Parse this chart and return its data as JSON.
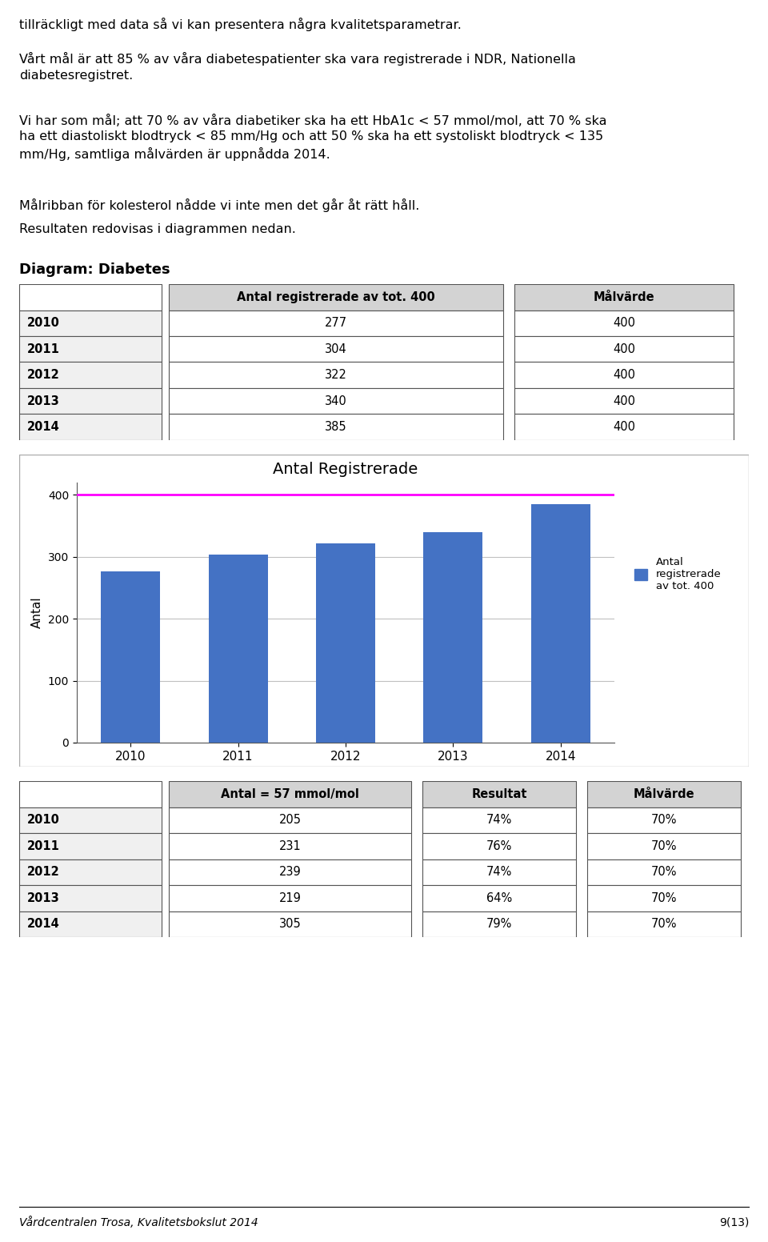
{
  "text_paragraphs": [
    "tillräckligt med data så vi kan presentera några kvalitetsparametrar.",
    "Vårt mål är att 85 % av våra diabetespatienter ska vara registrerade i NDR, Nationella\ndiabetesregistret.",
    "Vi har som mål; att 70 % av våra diabetiker ska ha ett HbA1c < 57 mmol/mol, att 70 % ska\nha ett diastoliskt blodtryck < 85 mm/Hg och att 50 % ska ha ett systoliskt blodtryck < 135\nmm/Hg, samtliga målvärden är uppnådda 2014.",
    "Målribban för kolesterol nådde vi inte men det går åt rätt håll.",
    "Resultaten redovisas i diagrammen nedan."
  ],
  "diagram_label": "Diagram: Diabetes",
  "table1_headers": [
    "",
    "Antal registrerade av tot. 400",
    "Målvärde"
  ],
  "table1_rows": [
    [
      "2010",
      "277",
      "400"
    ],
    [
      "2011",
      "304",
      "400"
    ],
    [
      "2012",
      "322",
      "400"
    ],
    [
      "2013",
      "340",
      "400"
    ],
    [
      "2014",
      "385",
      "400"
    ]
  ],
  "chart_title": "Antal Registrerade",
  "chart_years": [
    "2010",
    "2011",
    "2012",
    "2013",
    "2014"
  ],
  "chart_values": [
    277,
    304,
    322,
    340,
    385
  ],
  "chart_target": 400,
  "chart_yticks": [
    0,
    100,
    200,
    300,
    400
  ],
  "bar_color": "#4472C4",
  "target_line_color": "#FF00FF",
  "legend_label": "Antal\nregistrerade\nav tot. 400",
  "ylabel": "Antal",
  "table2_headers": [
    "",
    "Antal = 57 mmol/mol",
    "Resultat",
    "Målvärde"
  ],
  "table2_rows": [
    [
      "2010",
      "205",
      "74%",
      "70%"
    ],
    [
      "2011",
      "231",
      "76%",
      "70%"
    ],
    [
      "2012",
      "239",
      "74%",
      "70%"
    ],
    [
      "2013",
      "219",
      "64%",
      "70%"
    ],
    [
      "2014",
      "305",
      "79%",
      "70%"
    ]
  ],
  "footer_left": "Vårdcentralen Trosa, Kvalitetsbokslut 2014",
  "footer_right": "9(13)",
  "bg_color": "#FFFFFF",
  "text_color": "#000000",
  "table_header_bg": "#D3D3D3",
  "table_row_bg": "#FFFFFF",
  "table_year_bg": "#F0F0F0"
}
